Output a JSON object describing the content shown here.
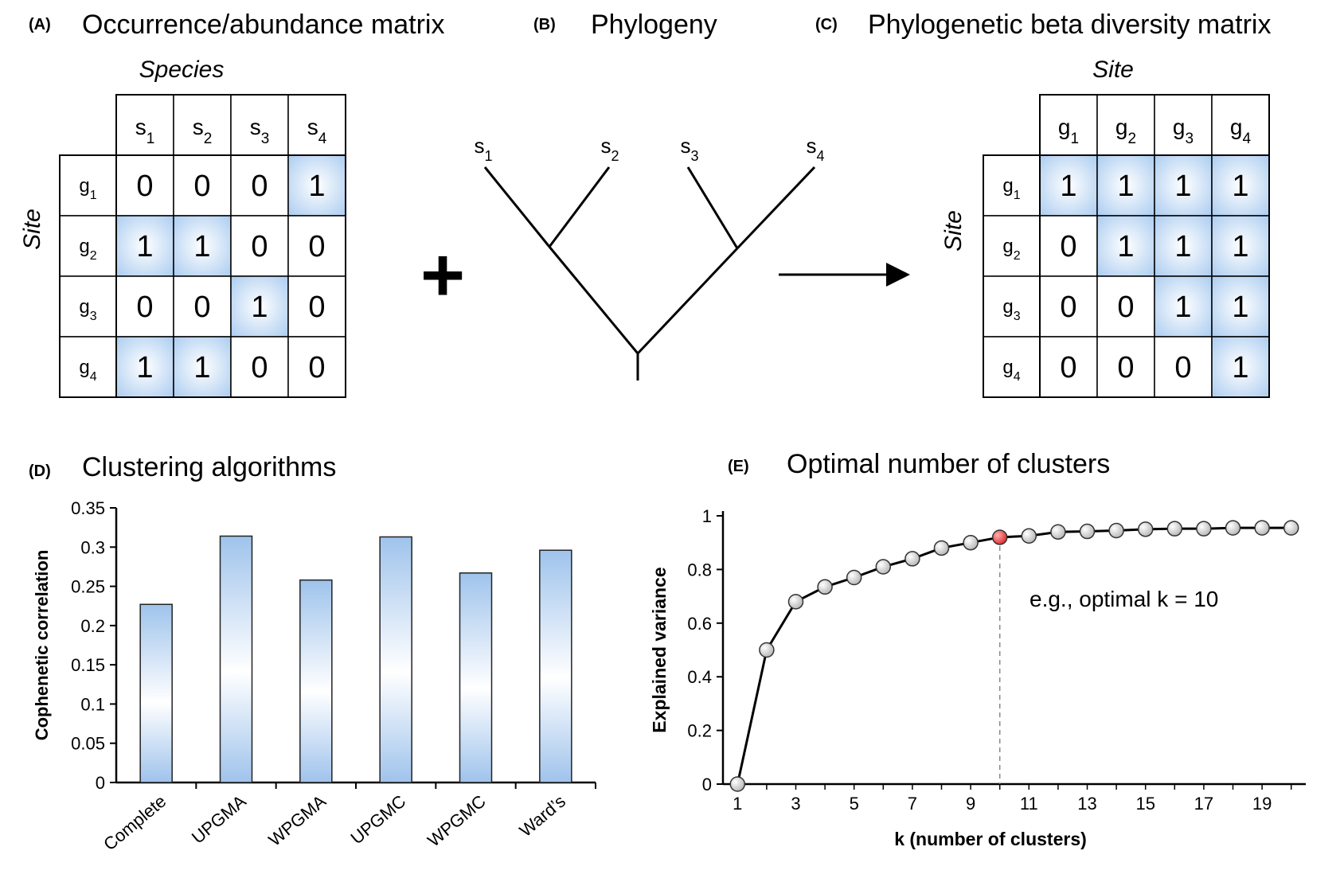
{
  "panelA": {
    "tag": "(A)",
    "title": "Occurrence/abundance matrix",
    "col_axis_label": "Species",
    "row_axis_label": "Site",
    "col_headers": [
      {
        "base": "s",
        "sub": "1"
      },
      {
        "base": "s",
        "sub": "2"
      },
      {
        "base": "s",
        "sub": "3"
      },
      {
        "base": "s",
        "sub": "4"
      }
    ],
    "row_headers": [
      {
        "base": "g",
        "sub": "1"
      },
      {
        "base": "g",
        "sub": "2"
      },
      {
        "base": "g",
        "sub": "3"
      },
      {
        "base": "g",
        "sub": "4"
      }
    ],
    "matrix": [
      [
        0,
        0,
        0,
        1
      ],
      [
        1,
        1,
        0,
        0
      ],
      [
        0,
        0,
        1,
        0
      ],
      [
        1,
        1,
        0,
        0
      ]
    ]
  },
  "panelB": {
    "tag": "(B)",
    "title": "Phylogeny",
    "operator_symbol": "+",
    "leaves": [
      {
        "base": "s",
        "sub": "1"
      },
      {
        "base": "s",
        "sub": "2"
      },
      {
        "base": "s",
        "sub": "3"
      },
      {
        "base": "s",
        "sub": "4"
      }
    ]
  },
  "panelC": {
    "tag": "(C)",
    "title": "Phylogenetic beta diversity matrix",
    "col_axis_label": "Site",
    "row_axis_label": "Site",
    "col_headers": [
      {
        "base": "g",
        "sub": "1"
      },
      {
        "base": "g",
        "sub": "2"
      },
      {
        "base": "g",
        "sub": "3"
      },
      {
        "base": "g",
        "sub": "4"
      }
    ],
    "row_headers": [
      {
        "base": "g",
        "sub": "1"
      },
      {
        "base": "g",
        "sub": "2"
      },
      {
        "base": "g",
        "sub": "3"
      },
      {
        "base": "g",
        "sub": "4"
      }
    ],
    "matrix": [
      [
        1,
        1,
        1,
        1
      ],
      [
        0,
        1,
        1,
        1
      ],
      [
        0,
        0,
        1,
        1
      ],
      [
        0,
        0,
        0,
        1
      ]
    ]
  },
  "colors": {
    "cell_highlight": "#a9cbf0",
    "bar_edge": "#9fc3ec",
    "bar_center": "#ffffff",
    "point_fill": "#d9d9d9",
    "point_optimal": "#e8393b",
    "dashed_line": "#888888"
  },
  "chart_data": [
    {
      "panel_tag": "(D)",
      "type": "bar",
      "title": "Clustering algorithms",
      "xlabel": "",
      "ylabel": "Cophenetic correlation",
      "categories": [
        "Complete",
        "UPGMA",
        "WPGMA",
        "UPGMC",
        "WPGMC",
        "Ward’s"
      ],
      "values": [
        0.227,
        0.314,
        0.258,
        0.313,
        0.267,
        0.296
      ],
      "ylim": [
        0,
        0.35
      ],
      "yticks": [
        "0",
        "0.05",
        "0.1",
        "0.15",
        "0.2",
        "0.25",
        "0.3",
        "0.35"
      ],
      "ytick_values": [
        0,
        0.05,
        0.1,
        0.15,
        0.2,
        0.25,
        0.3,
        0.35
      ],
      "grid": false
    },
    {
      "panel_tag": "(E)",
      "type": "line",
      "title": "Optimal number of clusters",
      "xlabel": "k (number of clusters)",
      "ylabel": "Explained variance",
      "x": [
        1,
        2,
        3,
        4,
        5,
        6,
        7,
        8,
        9,
        10,
        11,
        12,
        13,
        14,
        15,
        16,
        17,
        18,
        19,
        20
      ],
      "y": [
        0,
        0.5,
        0.68,
        0.735,
        0.77,
        0.81,
        0.84,
        0.88,
        0.9,
        0.92,
        0.925,
        0.94,
        0.942,
        0.945,
        0.95,
        0.952,
        0.952,
        0.955,
        0.955,
        0.955
      ],
      "xlim": [
        0.5,
        20.5
      ],
      "ylim": [
        0,
        1
      ],
      "xticks": [
        "1",
        "3",
        "5",
        "7",
        "9",
        "11",
        "13",
        "15",
        "17",
        "19"
      ],
      "xtick_values": [
        1,
        3,
        5,
        7,
        9,
        11,
        13,
        15,
        17,
        19
      ],
      "yticks": [
        "0",
        "0.2",
        "0.4",
        "0.6",
        "0.8",
        "1"
      ],
      "ytick_values": [
        0,
        0.2,
        0.4,
        0.6,
        0.8,
        1
      ],
      "optimal_k": 10,
      "annotation": "e.g., optimal k = 10",
      "grid": false
    }
  ]
}
